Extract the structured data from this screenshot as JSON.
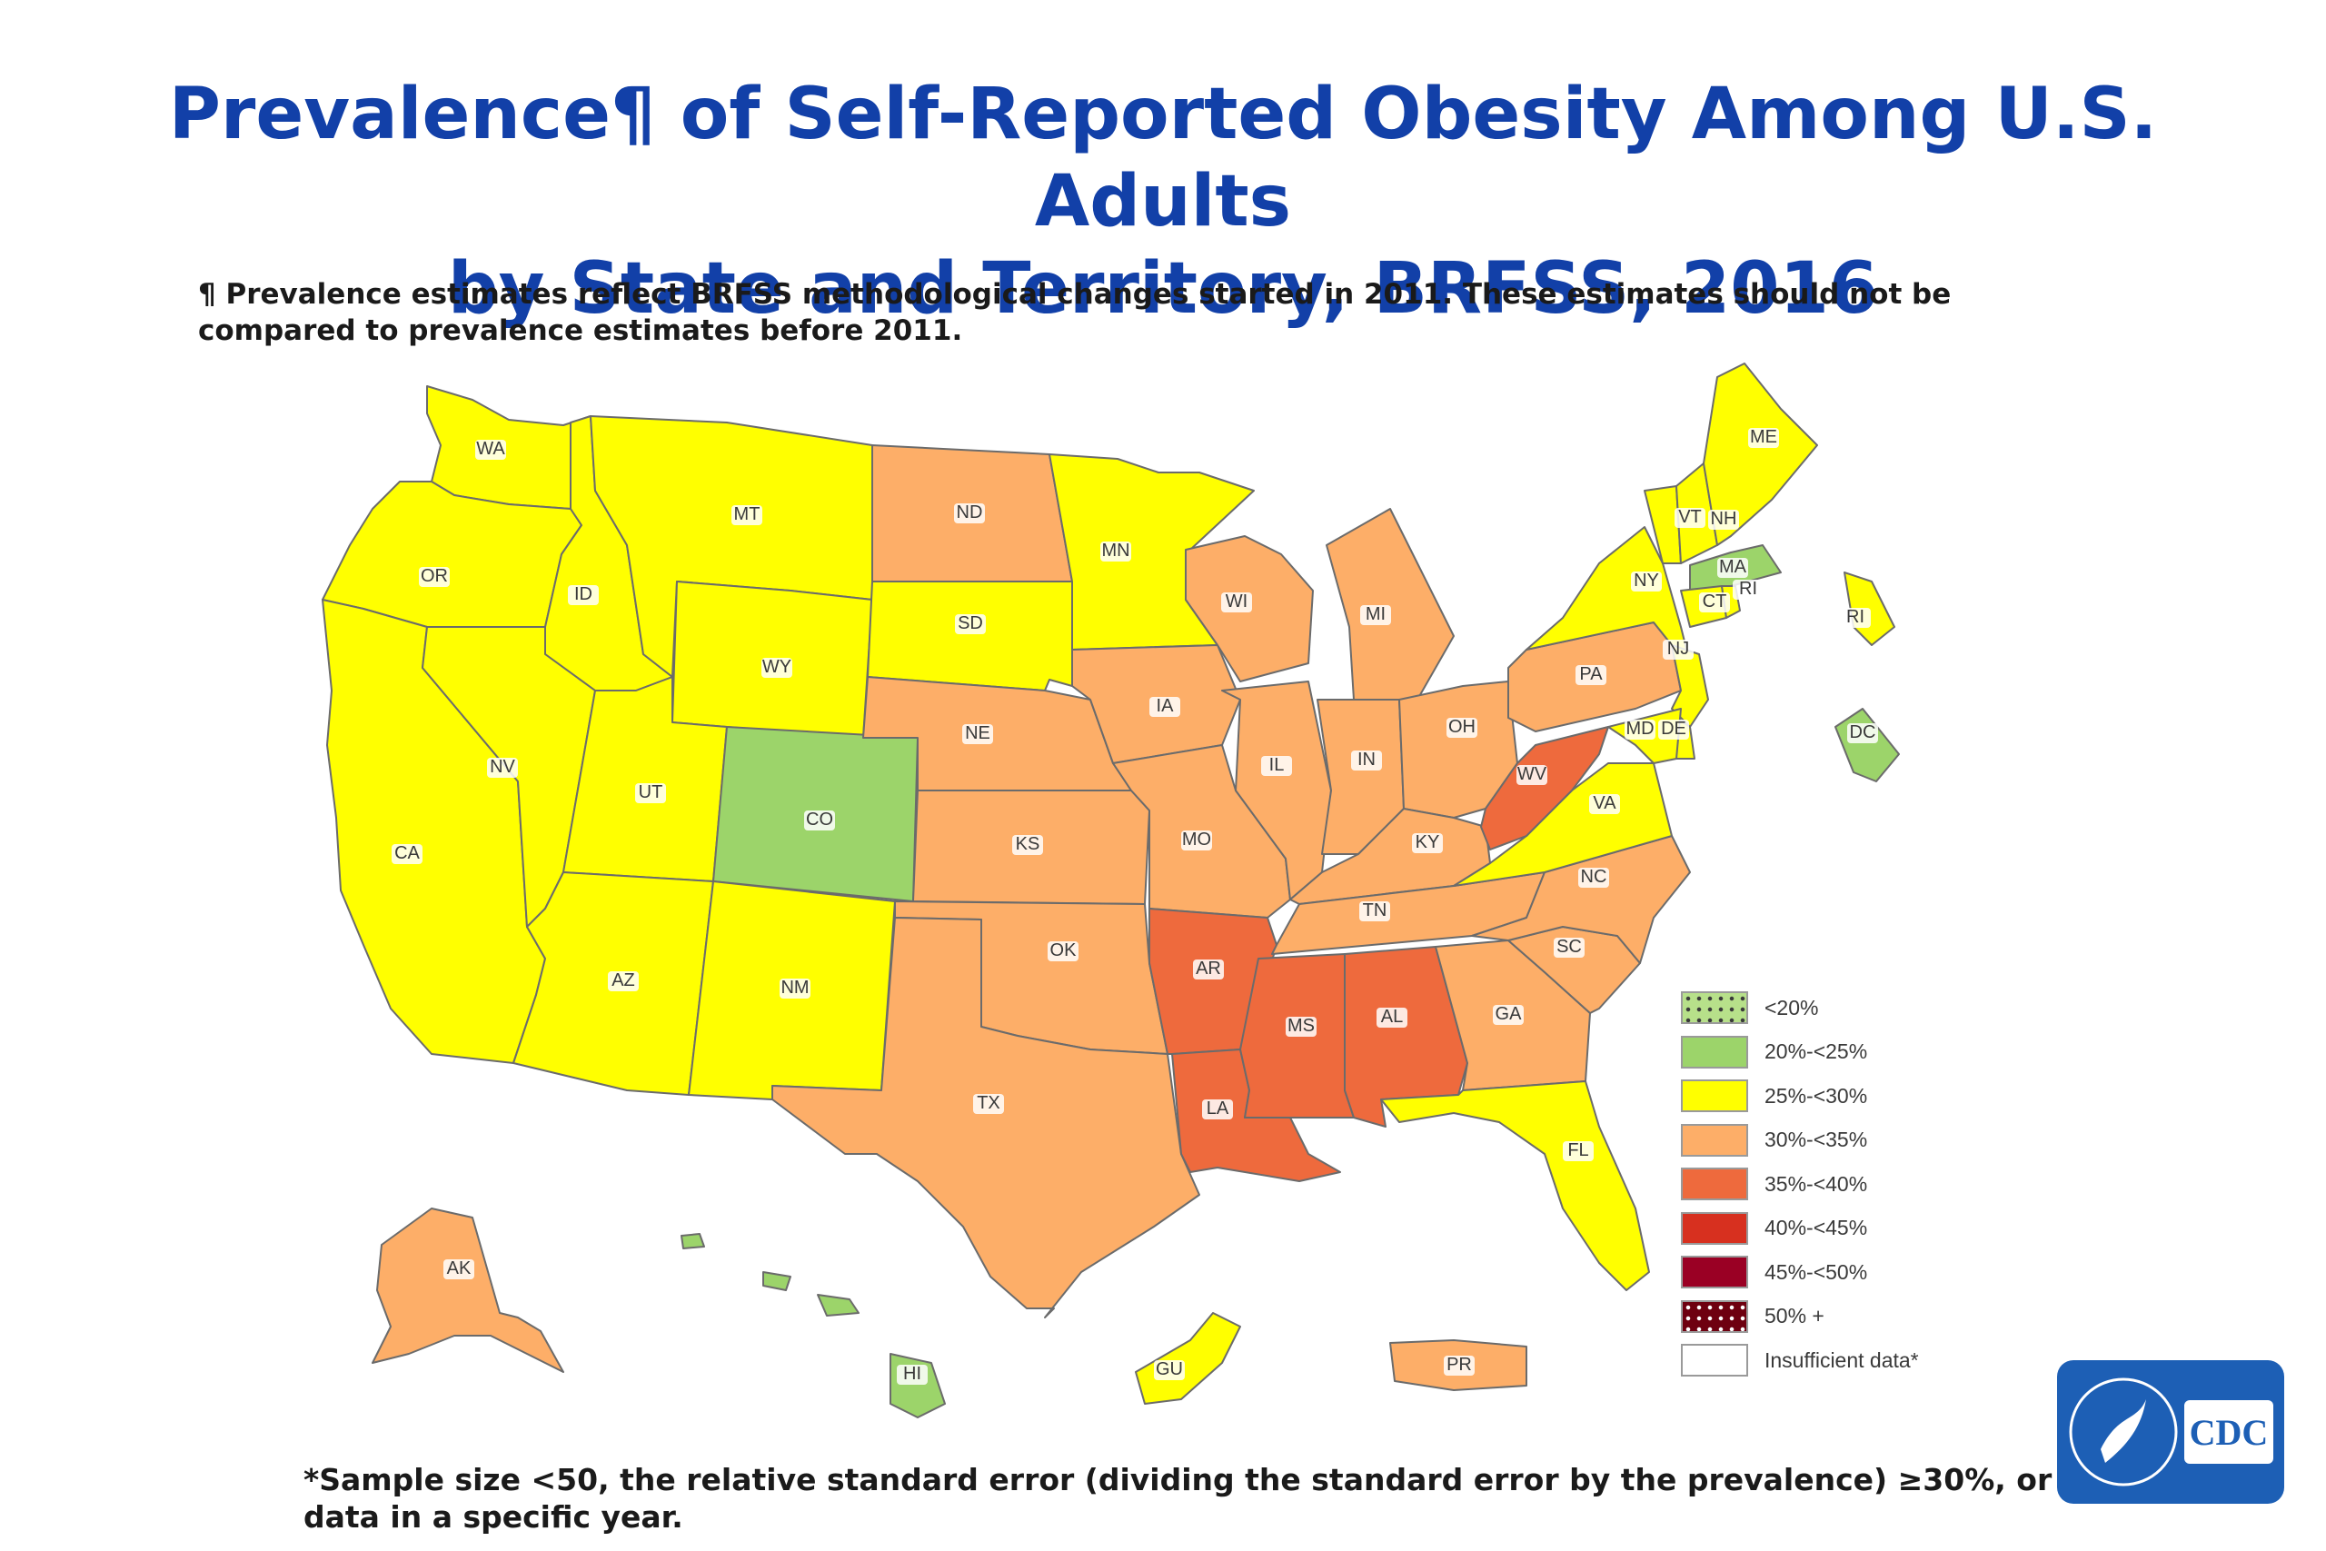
{
  "title": {
    "line1": "Prevalence¶ of Self-Reported Obesity Among U.S. Adults",
    "line2": "by State and Territory, BRFSS, 2016"
  },
  "footnote_top": "¶ Prevalence estimates reflect BRFSS methodological changes started in 2011. These estimates should not be compared to prevalence estimates before 2011.",
  "footnote_bottom": "*Sample size <50, the relative standard error (dividing the standard error by the prevalence) ≥30%, or no data in a specific year.",
  "colors": {
    "lt20": "#b7e08a",
    "c20_25": "#9cd46a",
    "c25_30": "#ffff00",
    "c30_35": "#fdae68",
    "c35_40": "#ee6a3d",
    "c40_45": "#d7301f",
    "c45_50": "#9a0024",
    "c50plus": "#6e0010",
    "insufficient": "#ffffff",
    "title": "#1240a8",
    "logo_blue": "#1d5fb5"
  },
  "legend": [
    {
      "label": "<20%",
      "color_key": "lt20",
      "pattern": "dots"
    },
    {
      "label": "20%-<25%",
      "color_key": "c20_25",
      "pattern": "solid"
    },
    {
      "label": "25%-<30%",
      "color_key": "c25_30",
      "pattern": "solid"
    },
    {
      "label": "30%-<35%",
      "color_key": "c30_35",
      "pattern": "solid"
    },
    {
      "label": "35%-<40%",
      "color_key": "c35_40",
      "pattern": "solid"
    },
    {
      "label": "40%-<45%",
      "color_key": "c40_45",
      "pattern": "solid"
    },
    {
      "label": "45%-<50%",
      "color_key": "c45_50",
      "pattern": "solid"
    },
    {
      "label": "50% +",
      "color_key": "c50plus",
      "pattern": "dots-light"
    },
    {
      "label": "Insufficient data*",
      "color_key": "insufficient",
      "pattern": "solid"
    }
  ],
  "states": [
    {
      "abbr": "WA",
      "category": "c25_30"
    },
    {
      "abbr": "OR",
      "category": "c25_30"
    },
    {
      "abbr": "CA",
      "category": "c25_30"
    },
    {
      "abbr": "ID",
      "category": "c25_30"
    },
    {
      "abbr": "NV",
      "category": "c25_30"
    },
    {
      "abbr": "MT",
      "category": "c25_30"
    },
    {
      "abbr": "WY",
      "category": "c25_30"
    },
    {
      "abbr": "UT",
      "category": "c25_30"
    },
    {
      "abbr": "CO",
      "category": "c20_25"
    },
    {
      "abbr": "AZ",
      "category": "c25_30"
    },
    {
      "abbr": "NM",
      "category": "c25_30"
    },
    {
      "abbr": "ND",
      "category": "c30_35"
    },
    {
      "abbr": "SD",
      "category": "c25_30"
    },
    {
      "abbr": "NE",
      "category": "c30_35"
    },
    {
      "abbr": "KS",
      "category": "c30_35"
    },
    {
      "abbr": "OK",
      "category": "c30_35"
    },
    {
      "abbr": "TX",
      "category": "c30_35"
    },
    {
      "abbr": "MN",
      "category": "c25_30"
    },
    {
      "abbr": "IA",
      "category": "c30_35"
    },
    {
      "abbr": "MO",
      "category": "c30_35"
    },
    {
      "abbr": "AR",
      "category": "c35_40"
    },
    {
      "abbr": "LA",
      "category": "c35_40"
    },
    {
      "abbr": "WI",
      "category": "c30_35"
    },
    {
      "abbr": "IL",
      "category": "c30_35"
    },
    {
      "abbr": "MI",
      "category": "c30_35"
    },
    {
      "abbr": "IN",
      "category": "c30_35"
    },
    {
      "abbr": "OH",
      "category": "c30_35"
    },
    {
      "abbr": "KY",
      "category": "c30_35"
    },
    {
      "abbr": "TN",
      "category": "c30_35"
    },
    {
      "abbr": "MS",
      "category": "c35_40"
    },
    {
      "abbr": "AL",
      "category": "c35_40"
    },
    {
      "abbr": "GA",
      "category": "c30_35"
    },
    {
      "abbr": "FL",
      "category": "c25_30"
    },
    {
      "abbr": "SC",
      "category": "c30_35"
    },
    {
      "abbr": "NC",
      "category": "c30_35"
    },
    {
      "abbr": "VA",
      "category": "c25_30"
    },
    {
      "abbr": "WV",
      "category": "c35_40"
    },
    {
      "abbr": "PA",
      "category": "c30_35"
    },
    {
      "abbr": "NY",
      "category": "c25_30"
    },
    {
      "abbr": "VT",
      "category": "c25_30"
    },
    {
      "abbr": "NH",
      "category": "c25_30"
    },
    {
      "abbr": "ME",
      "category": "c25_30"
    },
    {
      "abbr": "MA",
      "category": "c20_25"
    },
    {
      "abbr": "CT",
      "category": "c25_30"
    },
    {
      "abbr": "RI",
      "category": "c25_30"
    },
    {
      "abbr": "NJ",
      "category": "c25_30"
    },
    {
      "abbr": "DE",
      "category": "c25_30"
    },
    {
      "abbr": "MD",
      "category": "c25_30"
    },
    {
      "abbr": "DC",
      "category": "c20_25"
    },
    {
      "abbr": "AK",
      "category": "c30_35"
    },
    {
      "abbr": "HI",
      "category": "c20_25"
    },
    {
      "abbr": "GU",
      "category": "c25_30"
    },
    {
      "abbr": "PR",
      "category": "c30_35"
    }
  ],
  "labels": {
    "WA": "WA",
    "OR": "OR",
    "CA": "CA",
    "ID": "ID",
    "NV": "NV",
    "MT": "MT",
    "WY": "WY",
    "UT": "UT",
    "CO": "CO",
    "AZ": "AZ",
    "NM": "NM",
    "ND": "ND",
    "SD": "SD",
    "NE": "NE",
    "KS": "KS",
    "OK": "OK",
    "TX": "TX",
    "MN": "MN",
    "IA": "IA",
    "MO": "MO",
    "AR": "AR",
    "LA": "LA",
    "WI": "WI",
    "IL": "IL",
    "MI": "MI",
    "IN": "IN",
    "OH": "OH",
    "KY": "KY",
    "TN": "TN",
    "MS": "MS",
    "AL": "AL",
    "GA": "GA",
    "FL": "FL",
    "SC": "SC",
    "NC": "NC",
    "VA": "VA",
    "WV": "WV",
    "PA": "PA",
    "NY": "NY",
    "VT": "VT",
    "NH": "NH",
    "ME": "ME",
    "MA": "MA",
    "CT": "CT",
    "RI": "RI",
    "RI2": "RI",
    "NJ": "NJ",
    "DE": "DE",
    "MD": "MD",
    "DC": "DC",
    "AK": "AK",
    "HI": "HI",
    "GU": "GU",
    "PR": "PR"
  },
  "logo": {
    "text": "CDC"
  }
}
